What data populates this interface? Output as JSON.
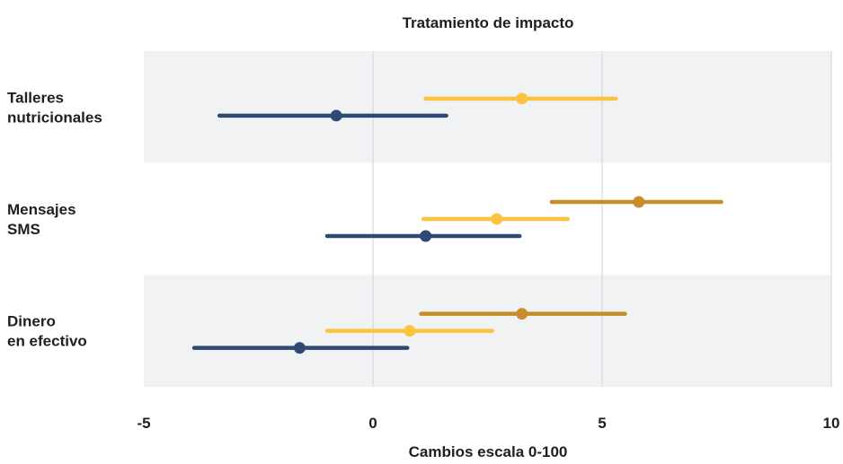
{
  "chart_data": {
    "type": "dot-interval",
    "title": "Tratamiento de impacto",
    "xlabel": "Cambios escala 0-100",
    "xlim": [
      -5,
      10
    ],
    "xticks": [
      -5,
      0,
      5,
      10
    ],
    "grid": "vertical",
    "categories": [
      {
        "label_lines": [
          "Talleres",
          "nutricionales"
        ]
      },
      {
        "label_lines": [
          "Mensajes",
          "SMS"
        ]
      },
      {
        "label_lines": [
          "Dinero",
          "en efectivo"
        ]
      }
    ],
    "band_colors": [
      "#f1f2f4",
      "#ffffff",
      "#f1f2f4"
    ],
    "intervals": [
      {
        "category": 0,
        "color": "#fbc440",
        "low": 1.15,
        "estimate": 3.25,
        "high": 5.3
      },
      {
        "category": 0,
        "color": "#2e4a74",
        "low": -3.35,
        "estimate": -0.8,
        "high": 1.6
      },
      {
        "category": 1,
        "color": "#c68d2a",
        "low": 3.9,
        "estimate": 5.8,
        "high": 7.6
      },
      {
        "category": 1,
        "color": "#fbc440",
        "low": 1.1,
        "estimate": 2.7,
        "high": 4.25
      },
      {
        "category": 1,
        "color": "#2e4a74",
        "low": -1.0,
        "estimate": 1.15,
        "high": 3.2
      },
      {
        "category": 2,
        "color": "#c68d2a",
        "low": 1.05,
        "estimate": 3.25,
        "high": 5.5
      },
      {
        "category": 2,
        "color": "#fbc440",
        "low": -1.0,
        "estimate": 0.8,
        "high": 2.6
      },
      {
        "category": 2,
        "color": "#2e4a74",
        "low": -3.9,
        "estimate": -1.6,
        "high": 0.75
      }
    ]
  }
}
